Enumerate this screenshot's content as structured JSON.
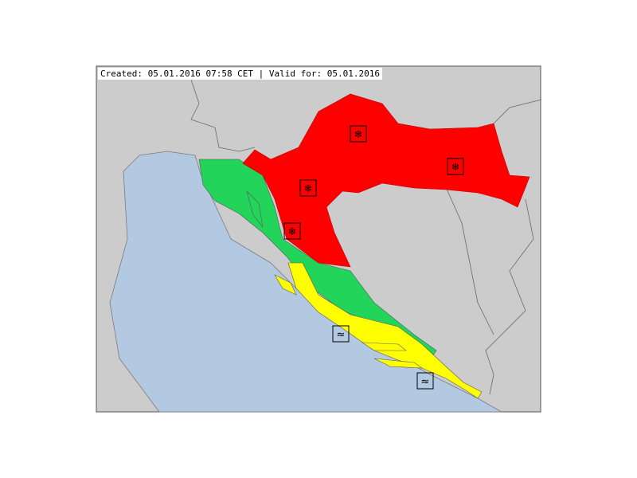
{
  "header": {
    "caption": "Created: 05.01.2016 07:58 CET | Valid for: 05.01.2016"
  },
  "colors": {
    "sea": "#b3c9e1",
    "land": "#cccccc",
    "border": "#7a7a7a",
    "red": "#ff0000",
    "yellow": "#ffff00",
    "green": "#22d45a"
  },
  "warnings": [
    {
      "icon": "snow-ice-icon",
      "level": "red"
    },
    {
      "icon": "snow-ice-icon",
      "level": "red"
    },
    {
      "icon": "snow-ice-icon",
      "level": "red"
    },
    {
      "icon": "snow-ice-icon",
      "level": "red"
    },
    {
      "icon": "wind-icon",
      "level": "yellow"
    },
    {
      "icon": "wind-icon",
      "level": "yellow"
    }
  ]
}
